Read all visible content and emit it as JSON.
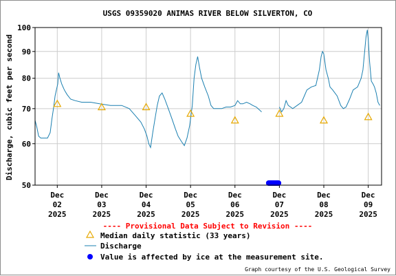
{
  "chart_data": {
    "type": "line",
    "title": "USGS 09359020 ANIMAS RIVER BELOW SILVERTON, CO",
    "ylabel": "Discharge, cubic feet per second",
    "ylim": [
      50,
      100
    ],
    "y_scale": "log",
    "y_ticks": [
      "50",
      "60",
      "70",
      "80",
      "90",
      "100"
    ],
    "x_ticks": [
      {
        "month": "Dec",
        "day": "02",
        "year": "2025"
      },
      {
        "month": "Dec",
        "day": "03",
        "year": "2025"
      },
      {
        "month": "Dec",
        "day": "04",
        "year": "2025"
      },
      {
        "month": "Dec",
        "day": "05",
        "year": "2025"
      },
      {
        "month": "Dec",
        "day": "06",
        "year": "2025"
      },
      {
        "month": "Dec",
        "day": "07",
        "year": "2025"
      },
      {
        "month": "Dec",
        "day": "08",
        "year": "2025"
      },
      {
        "month": "Dec",
        "day": "09",
        "year": "2025"
      }
    ],
    "xlim_days": [
      1.5,
      9.3
    ],
    "grid": true,
    "notice": "---- Provisional Data Subject to Revision ----",
    "legend": [
      {
        "key": "median",
        "label": "Median daily statistic (33 years)"
      },
      {
        "key": "discharge",
        "label": "Discharge"
      },
      {
        "key": "ice",
        "label": "Value is affected by ice at the measurement site."
      }
    ],
    "credit": "Graph courtesy of the U.S. Geological Survey",
    "colors": {
      "discharge": "#1a7fb0",
      "median": "#e6a800",
      "ice": "#0000ff",
      "notice": "#ff0000",
      "grid": "#cccccc"
    },
    "series": [
      {
        "name": "Discharge",
        "segments": [
          [
            [
              1.5,
              66.5
            ],
            [
              1.54,
              64.5
            ],
            [
              1.58,
              62
            ],
            [
              1.63,
              61.5
            ],
            [
              1.7,
              61.5
            ],
            [
              1.78,
              61.5
            ],
            [
              1.84,
              63
            ],
            [
              1.88,
              67
            ],
            [
              1.92,
              70.5
            ],
            [
              1.95,
              74
            ],
            [
              1.98,
              76
            ],
            [
              2.01,
              78
            ],
            [
              2.03,
              82
            ],
            [
              2.06,
              80
            ],
            [
              2.1,
              78
            ],
            [
              2.16,
              76
            ],
            [
              2.22,
              74.5
            ],
            [
              2.3,
              73
            ],
            [
              2.4,
              72.5
            ],
            [
              2.55,
              72
            ],
            [
              2.75,
              72
            ],
            [
              2.95,
              71.5
            ],
            [
              3.2,
              71
            ],
            [
              3.45,
              71
            ],
            [
              3.62,
              70
            ],
            [
              3.75,
              68
            ],
            [
              3.88,
              66
            ],
            [
              3.96,
              64
            ],
            [
              4.02,
              62
            ],
            [
              4.06,
              60
            ],
            [
              4.1,
              59
            ],
            [
              4.15,
              63
            ],
            [
              4.2,
              67
            ],
            [
              4.25,
              71
            ],
            [
              4.3,
              74
            ],
            [
              4.36,
              75
            ],
            [
              4.42,
              73
            ],
            [
              4.5,
              70
            ],
            [
              4.58,
              67
            ],
            [
              4.66,
              64
            ],
            [
              4.72,
              62
            ],
            [
              4.8,
              60.5
            ],
            [
              4.86,
              59.5
            ],
            [
              4.92,
              61.5
            ],
            [
              4.98,
              65
            ],
            [
              5.04,
              71
            ],
            [
              5.08,
              80
            ],
            [
              5.12,
              85
            ],
            [
              5.16,
              88
            ],
            [
              5.2,
              84
            ],
            [
              5.25,
              80
            ],
            [
              5.32,
              77
            ],
            [
              5.4,
              74
            ],
            [
              5.46,
              71
            ],
            [
              5.52,
              70
            ],
            [
              5.6,
              70
            ],
            [
              5.7,
              70
            ],
            [
              5.8,
              70.5
            ],
            [
              5.9,
              70.5
            ],
            [
              6.0,
              71
            ],
            [
              6.06,
              72.5
            ],
            [
              6.12,
              71.5
            ],
            [
              6.18,
              71.5
            ],
            [
              6.26,
              72
            ],
            [
              6.34,
              71.5
            ],
            [
              6.4,
              71
            ],
            [
              6.48,
              70.5
            ],
            [
              6.56,
              69.5
            ],
            [
              6.6,
              69
            ]
          ],
          [
            [
              7.0,
              70.5
            ],
            [
              7.05,
              69
            ],
            [
              7.1,
              70
            ],
            [
              7.15,
              72.5
            ],
            [
              7.2,
              71
            ],
            [
              7.3,
              70
            ],
            [
              7.4,
              71
            ],
            [
              7.5,
              72
            ],
            [
              7.56,
              74
            ],
            [
              7.62,
              76
            ],
            [
              7.72,
              77
            ],
            [
              7.82,
              77.5
            ],
            [
              7.9,
              83
            ],
            [
              7.94,
              88
            ],
            [
              7.97,
              90
            ],
            [
              8.0,
              89
            ],
            [
              8.05,
              83
            ],
            [
              8.1,
              80
            ],
            [
              8.14,
              77
            ],
            [
              8.2,
              76
            ],
            [
              8.3,
              74
            ],
            [
              8.38,
              71
            ],
            [
              8.44,
              70
            ],
            [
              8.5,
              70.5
            ],
            [
              8.58,
              73
            ],
            [
              8.66,
              76
            ],
            [
              8.76,
              77
            ],
            [
              8.84,
              80
            ],
            [
              8.88,
              83
            ],
            [
              8.92,
              90
            ],
            [
              8.95,
              96
            ],
            [
              8.98,
              99
            ],
            [
              9.0,
              95
            ],
            [
              9.03,
              86
            ],
            [
              9.07,
              79
            ],
            [
              9.11,
              78
            ],
            [
              9.14,
              77
            ],
            [
              9.18,
              75
            ],
            [
              9.22,
              72
            ],
            [
              9.26,
              71
            ]
          ]
        ]
      }
    ],
    "median": [
      {
        "x": 2.0,
        "y": 71.5
      },
      {
        "x": 3.0,
        "y": 70.5
      },
      {
        "x": 4.0,
        "y": 70.5
      },
      {
        "x": 5.0,
        "y": 68.5
      },
      {
        "x": 6.0,
        "y": 66.5
      },
      {
        "x": 7.0,
        "y": 68.5
      },
      {
        "x": 8.0,
        "y": 66.5
      },
      {
        "x": 9.0,
        "y": 67.5
      }
    ],
    "ice_range": [
      6.76,
      6.98
    ],
    "ice_level": 50
  }
}
